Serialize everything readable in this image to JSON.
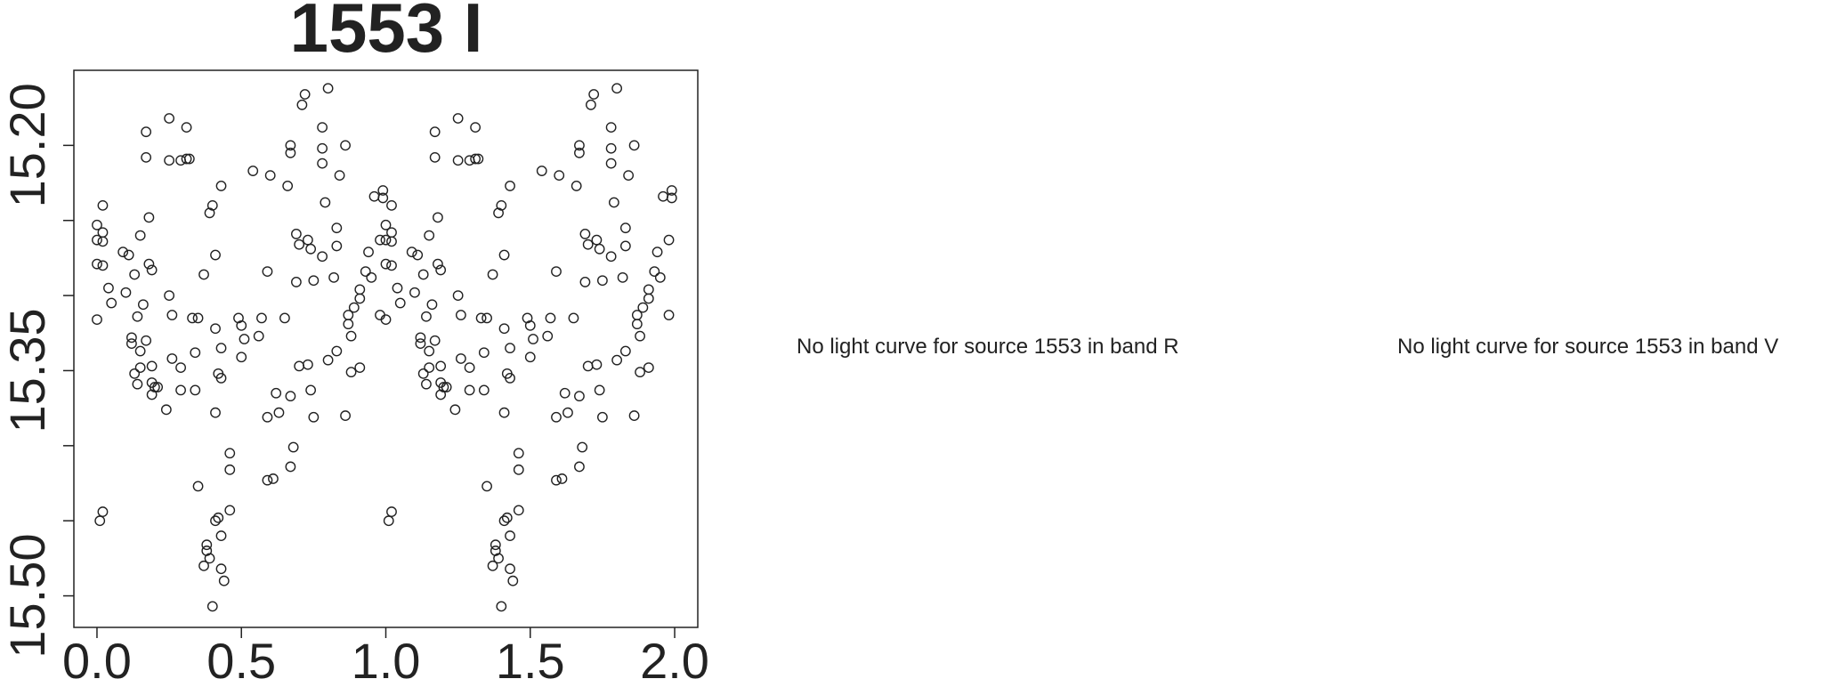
{
  "chart_data": {
    "type": "scatter",
    "title": "1553 I",
    "xlabel": "",
    "ylabel": "",
    "xlim": [
      -0.08,
      2.08
    ],
    "ylim": [
      15.521,
      15.15
    ],
    "y_reversed": true,
    "grid": false,
    "x_ticks": [
      "0.0",
      "0.5",
      "1.0",
      "1.5",
      "2.0"
    ],
    "x_tick_values": [
      0,
      0.5,
      1.0,
      1.5,
      2.0
    ],
    "y_ticks": [
      "15.20",
      "",
      "",
      "15.35",
      "",
      "",
      "15.50"
    ],
    "y_tick_values": [
      15.2,
      15.25,
      15.3,
      15.35,
      15.4,
      15.45,
      15.5
    ],
    "marker": "open-circle",
    "points_phase_0_to_1": [
      [
        0.0,
        15.253
      ],
      [
        0.0,
        15.263
      ],
      [
        0.02,
        15.258
      ],
      [
        0.02,
        15.264
      ],
      [
        0.02,
        15.24
      ],
      [
        0.0,
        15.279
      ],
      [
        0.02,
        15.28
      ],
      [
        0.0,
        15.316
      ],
      [
        0.04,
        15.295
      ],
      [
        0.05,
        15.305
      ],
      [
        0.01,
        15.45
      ],
      [
        0.02,
        15.444
      ],
      [
        0.09,
        15.271
      ],
      [
        0.1,
        15.298
      ],
      [
        0.11,
        15.273
      ],
      [
        0.12,
        15.328
      ],
      [
        0.12,
        15.332
      ],
      [
        0.13,
        15.286
      ],
      [
        0.13,
        15.352
      ],
      [
        0.14,
        15.359
      ],
      [
        0.14,
        15.314
      ],
      [
        0.15,
        15.26
      ],
      [
        0.15,
        15.348
      ],
      [
        0.15,
        15.337
      ],
      [
        0.16,
        15.306
      ],
      [
        0.17,
        15.33
      ],
      [
        0.17,
        15.208
      ],
      [
        0.17,
        15.191
      ],
      [
        0.18,
        15.248
      ],
      [
        0.18,
        15.279
      ],
      [
        0.19,
        15.283
      ],
      [
        0.19,
        15.347
      ],
      [
        0.19,
        15.358
      ],
      [
        0.19,
        15.366
      ],
      [
        0.2,
        15.361
      ],
      [
        0.21,
        15.361
      ],
      [
        0.24,
        15.376
      ],
      [
        0.25,
        15.182
      ],
      [
        0.25,
        15.21
      ],
      [
        0.25,
        15.3
      ],
      [
        0.26,
        15.313
      ],
      [
        0.26,
        15.342
      ],
      [
        0.29,
        15.21
      ],
      [
        0.29,
        15.348
      ],
      [
        0.29,
        15.363
      ],
      [
        0.31,
        15.188
      ],
      [
        0.31,
        15.209
      ],
      [
        0.32,
        15.209
      ],
      [
        0.33,
        15.315
      ],
      [
        0.34,
        15.338
      ],
      [
        0.34,
        15.363
      ],
      [
        0.35,
        15.315
      ],
      [
        0.35,
        15.427
      ],
      [
        0.37,
        15.286
      ],
      [
        0.37,
        15.48
      ],
      [
        0.38,
        15.466
      ],
      [
        0.38,
        15.47
      ],
      [
        0.39,
        15.245
      ],
      [
        0.39,
        15.475
      ],
      [
        0.4,
        15.24
      ],
      [
        0.41,
        15.378
      ],
      [
        0.41,
        15.273
      ],
      [
        0.41,
        15.322
      ],
      [
        0.42,
        15.352
      ],
      [
        0.42,
        15.448
      ],
      [
        0.43,
        15.227
      ],
      [
        0.43,
        15.46
      ],
      [
        0.43,
        15.335
      ],
      [
        0.43,
        15.355
      ],
      [
        0.43,
        15.482
      ],
      [
        0.44,
        15.49
      ],
      [
        0.46,
        15.443
      ],
      [
        0.46,
        15.405
      ],
      [
        0.46,
        15.416
      ],
      [
        0.4,
        15.507
      ],
      [
        0.41,
        15.45
      ],
      [
        0.49,
        15.315
      ],
      [
        0.5,
        15.341
      ],
      [
        0.5,
        15.32
      ],
      [
        0.51,
        15.329
      ],
      [
        0.54,
        15.217
      ],
      [
        0.56,
        15.327
      ],
      [
        0.57,
        15.315
      ],
      [
        0.59,
        15.423
      ],
      [
        0.59,
        15.284
      ],
      [
        0.59,
        15.381
      ],
      [
        0.6,
        15.22
      ],
      [
        0.61,
        15.422
      ],
      [
        0.62,
        15.365
      ],
      [
        0.63,
        15.378
      ],
      [
        0.65,
        15.315
      ],
      [
        0.66,
        15.227
      ],
      [
        0.67,
        15.367
      ],
      [
        0.67,
        15.2
      ],
      [
        0.67,
        15.205
      ],
      [
        0.67,
        15.414
      ],
      [
        0.68,
        15.401
      ],
      [
        0.69,
        15.259
      ],
      [
        0.69,
        15.291
      ],
      [
        0.7,
        15.347
      ],
      [
        0.7,
        15.266
      ],
      [
        0.71,
        15.173
      ],
      [
        0.72,
        15.166
      ],
      [
        0.73,
        15.263
      ],
      [
        0.73,
        15.346
      ],
      [
        0.74,
        15.269
      ],
      [
        0.74,
        15.363
      ],
      [
        0.75,
        15.29
      ],
      [
        0.75,
        15.381
      ],
      [
        0.78,
        15.188
      ],
      [
        0.78,
        15.202
      ],
      [
        0.78,
        15.212
      ],
      [
        0.78,
        15.274
      ],
      [
        0.79,
        15.238
      ],
      [
        0.8,
        15.343
      ],
      [
        0.8,
        15.162
      ],
      [
        0.82,
        15.288
      ],
      [
        0.83,
        15.255
      ],
      [
        0.83,
        15.267
      ],
      [
        0.83,
        15.337
      ],
      [
        0.84,
        15.22
      ],
      [
        0.86,
        15.38
      ],
      [
        0.86,
        15.2
      ],
      [
        0.87,
        15.313
      ],
      [
        0.87,
        15.319
      ],
      [
        0.88,
        15.327
      ],
      [
        0.88,
        15.351
      ],
      [
        0.89,
        15.308
      ],
      [
        0.91,
        15.302
      ],
      [
        0.91,
        15.348
      ],
      [
        0.91,
        15.296
      ],
      [
        0.93,
        15.284
      ],
      [
        0.94,
        15.271
      ],
      [
        0.95,
        15.288
      ],
      [
        0.96,
        15.234
      ],
      [
        0.98,
        15.313
      ],
      [
        0.98,
        15.263
      ],
      [
        0.99,
        15.235
      ],
      [
        0.99,
        15.23
      ]
    ]
  },
  "messages": {
    "band_r": "No light curve for source 1553 in band R",
    "band_v": "No light curve for source 1553 in band V"
  }
}
